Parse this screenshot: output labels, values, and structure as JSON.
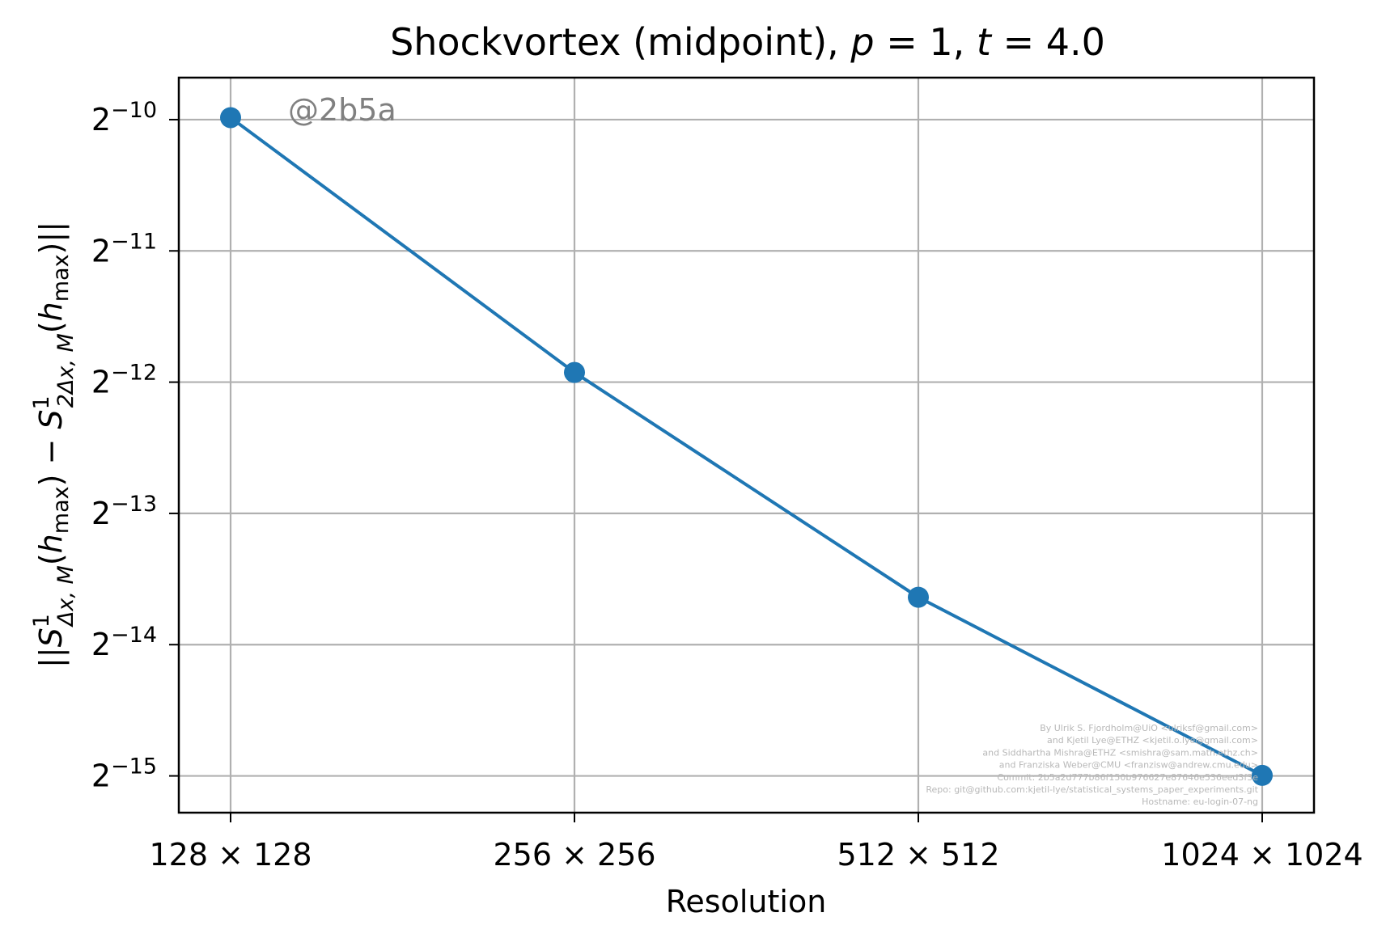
{
  "chart_data": {
    "type": "line",
    "title": "Shockvortex (midpoint), p = 1, t = 4.0",
    "xlabel": "Resolution",
    "ylabel": "||S¹Δx,M(hmax) − S¹2Δx,M(hmax)||",
    "categories": [
      "128 × 128",
      "256 × 256",
      "512 × 512",
      "1024 × 1024"
    ],
    "y_scale": "log2",
    "ylim_exponent": [
      -15.28,
      -9.68
    ],
    "y_ticks": [
      {
        "base": "2",
        "exp": "−10",
        "value_exp": -10
      },
      {
        "base": "2",
        "exp": "−11",
        "value_exp": -11
      },
      {
        "base": "2",
        "exp": "−12",
        "value_exp": -12
      },
      {
        "base": "2",
        "exp": "−13",
        "value_exp": -13
      },
      {
        "base": "2",
        "exp": "−14",
        "value_exp": -14
      },
      {
        "base": "2",
        "exp": "−15",
        "value_exp": -15
      }
    ],
    "series": [
      {
        "color": "#1f77b4",
        "marker": "circle",
        "values": [
          0.000987,
          0.000257,
          7.84e-05,
          3.06e-05
        ]
      }
    ],
    "grid": true
  },
  "annotations": {
    "tag": "@2b5a",
    "credits": [
      "By Ulrik S. Fjordholm@UiO <ulriksf@gmail.com>",
      "and Kjetil Lye@ETHZ <kjetil.o.lye@gmail.com>",
      "and Siddhartha Mishra@ETHZ <smishra@sam.math.ethz.ch>",
      "and Franziska Weber@CMU <franzisw@andrew.cmu.edu>",
      "Commit: 2b5a2d777b86f150b976627e87646e536eed3f3e",
      "Repo: git@github.com:kjetil-lye/statistical_systems_paper_experiments.git",
      "Hostname: eu-login-07-ng"
    ]
  }
}
